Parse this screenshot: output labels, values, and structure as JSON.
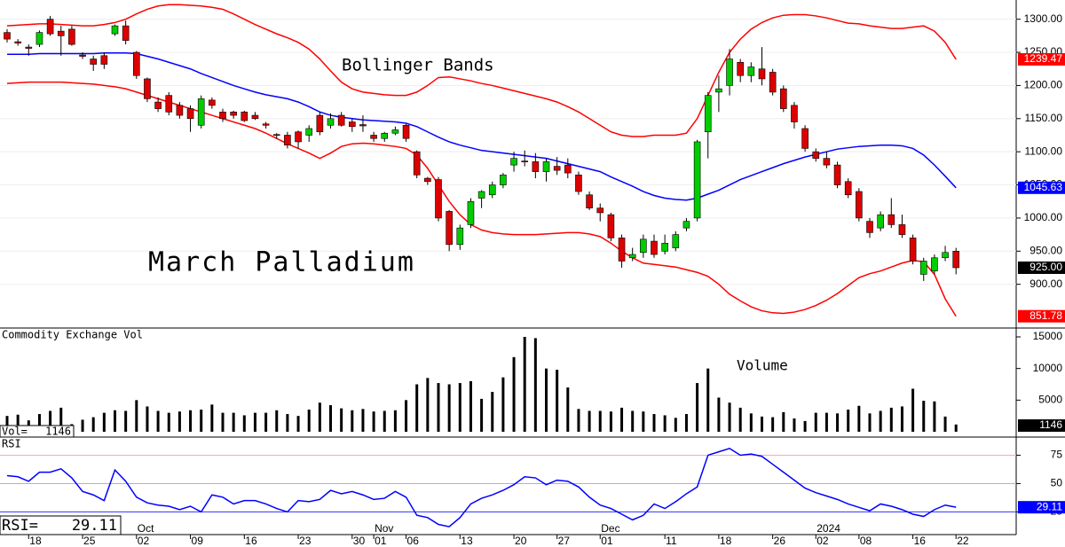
{
  "chart_data": [
    {
      "type": "candlestick",
      "title": "March Palladium",
      "annotation": "Bollinger Bands",
      "up_color": "#00cc00",
      "down_color": "#dd0000",
      "open": [
        1280,
        1266,
        1258,
        1262,
        1300,
        1282,
        1285,
        1246,
        1240,
        1245,
        1278,
        1290,
        1250,
        1210,
        1175,
        1185,
        1170,
        1165,
        1140,
        1178,
        1160,
        1160,
        1160,
        1155,
        1142,
        1126,
        1125,
        1130,
        1125,
        1155,
        1140,
        1155,
        1145,
        1141,
        1125,
        1120,
        1128,
        1140,
        1100,
        1060,
        1058,
        1010,
        960,
        990,
        1030,
        1035,
        1050,
        1080,
        1086,
        1085,
        1070,
        1078,
        1080,
        1065,
        1035,
        1015,
        1005,
        970,
        940,
        948,
        965,
        950,
        955,
        985,
        1000,
        1130,
        1190,
        1200,
        1235,
        1215,
        1225,
        1220,
        1195,
        1170,
        1135,
        1100,
        1090,
        1080,
        1055,
        1040,
        995,
        985,
        1005,
        990,
        970,
        915,
        920,
        940,
        950
      ],
      "high": [
        1285,
        1270,
        1262,
        1283,
        1305,
        1290,
        1290,
        1250,
        1245,
        1250,
        1292,
        1298,
        1252,
        1212,
        1182,
        1190,
        1175,
        1170,
        1185,
        1182,
        1165,
        1162,
        1162,
        1160,
        1145,
        1128,
        1130,
        1132,
        1140,
        1160,
        1158,
        1160,
        1150,
        1155,
        1130,
        1130,
        1138,
        1142,
        1102,
        1062,
        1062,
        1012,
        990,
        1030,
        1042,
        1055,
        1068,
        1100,
        1102,
        1098,
        1090,
        1092,
        1090,
        1070,
        1040,
        1022,
        1008,
        975,
        955,
        975,
        975,
        975,
        980,
        1000,
        1118,
        1190,
        1215,
        1255,
        1240,
        1235,
        1258,
        1225,
        1200,
        1175,
        1140,
        1105,
        1100,
        1085,
        1060,
        1045,
        1000,
        1010,
        1030,
        1005,
        975,
        940,
        945,
        958,
        955
      ],
      "low": [
        1265,
        1260,
        1245,
        1258,
        1275,
        1245,
        1260,
        1240,
        1222,
        1225,
        1275,
        1262,
        1210,
        1175,
        1160,
        1155,
        1150,
        1130,
        1135,
        1165,
        1145,
        1150,
        1145,
        1148,
        1135,
        1120,
        1105,
        1105,
        1115,
        1125,
        1135,
        1138,
        1130,
        1130,
        1115,
        1115,
        1125,
        1115,
        1060,
        1050,
        995,
        950,
        952,
        985,
        1015,
        1030,
        1045,
        1070,
        1078,
        1060,
        1055,
        1065,
        1060,
        1035,
        1012,
        995,
        965,
        925,
        935,
        940,
        940,
        945,
        950,
        980,
        995,
        1090,
        1160,
        1185,
        1205,
        1205,
        1200,
        1185,
        1160,
        1135,
        1100,
        1085,
        1075,
        1045,
        1030,
        995,
        970,
        980,
        985,
        970,
        930,
        905,
        915,
        935,
        915
      ],
      "close": [
        1270,
        1264,
        1256,
        1280,
        1278,
        1275,
        1262,
        1244,
        1232,
        1232,
        1290,
        1268,
        1215,
        1180,
        1165,
        1160,
        1155,
        1150,
        1180,
        1170,
        1150,
        1155,
        1147,
        1150,
        1140,
        1125,
        1110,
        1115,
        1135,
        1130,
        1150,
        1140,
        1138,
        1139,
        1120,
        1128,
        1133,
        1120,
        1065,
        1055,
        1000,
        960,
        985,
        1025,
        1040,
        1050,
        1065,
        1090,
        1085,
        1070,
        1085,
        1072,
        1068,
        1040,
        1015,
        1008,
        970,
        935,
        945,
        968,
        945,
        962,
        975,
        995,
        1115,
        1185,
        1195,
        1240,
        1215,
        1228,
        1210,
        1190,
        1165,
        1145,
        1105,
        1090,
        1080,
        1050,
        1035,
        1000,
        978,
        1005,
        990,
        975,
        935,
        935,
        940,
        948,
        925
      ],
      "last_close_label": "925.00",
      "bands": {
        "upper_color": "#ff0000",
        "middle_color": "#0000ff",
        "lower_color": "#ff0000",
        "upper": [
          1290,
          1291,
          1292,
          1293,
          1293,
          1292,
          1291,
          1290,
          1290,
          1292,
          1295,
          1300,
          1308,
          1315,
          1320,
          1322,
          1322,
          1321,
          1320,
          1318,
          1315,
          1308,
          1300,
          1292,
          1285,
          1278,
          1272,
          1265,
          1255,
          1240,
          1222,
          1205,
          1195,
          1190,
          1188,
          1186,
          1185,
          1185,
          1190,
          1200,
          1212,
          1213,
          1210,
          1207,
          1203,
          1200,
          1196,
          1192,
          1188,
          1184,
          1180,
          1175,
          1168,
          1160,
          1150,
          1140,
          1130,
          1125,
          1123,
          1123,
          1125,
          1125,
          1125,
          1128,
          1150,
          1185,
          1220,
          1250,
          1270,
          1285,
          1295,
          1302,
          1306,
          1307,
          1307,
          1305,
          1302,
          1298,
          1294,
          1293,
          1290,
          1288,
          1286,
          1286,
          1288,
          1290,
          1282,
          1265,
          1239.47
        ],
        "middle": [
          1247,
          1247,
          1247,
          1248,
          1248,
          1248,
          1248,
          1248,
          1248,
          1249,
          1249,
          1249,
          1248,
          1244,
          1240,
          1235,
          1230,
          1225,
          1218,
          1212,
          1206,
          1200,
          1195,
          1190,
          1186,
          1183,
          1180,
          1175,
          1168,
          1160,
          1155,
          1152,
          1150,
          1148,
          1147,
          1146,
          1145,
          1143,
          1138,
          1130,
          1122,
          1115,
          1110,
          1106,
          1102,
          1100,
          1098,
          1096,
          1094,
          1092,
          1090,
          1086,
          1082,
          1078,
          1074,
          1070,
          1062,
          1055,
          1048,
          1040,
          1034,
          1030,
          1028,
          1027,
          1030,
          1036,
          1042,
          1050,
          1058,
          1064,
          1070,
          1076,
          1082,
          1087,
          1092,
          1096,
          1100,
          1104,
          1106,
          1108,
          1109,
          1110,
          1110,
          1109,
          1105,
          1095,
          1080,
          1063,
          1045.63
        ],
        "lower": [
          1203,
          1204,
          1205,
          1205,
          1205,
          1205,
          1204,
          1203,
          1202,
          1200,
          1198,
          1195,
          1190,
          1185,
          1180,
          1175,
          1170,
          1165,
          1160,
          1155,
          1150,
          1145,
          1140,
          1135,
          1128,
          1120,
          1112,
          1105,
          1098,
          1090,
          1098,
          1108,
          1112,
          1113,
          1112,
          1110,
          1108,
          1105,
          1095,
          1075,
          1050,
          1025,
          1005,
          990,
          982,
          978,
          976,
          975,
          975,
          975,
          976,
          977,
          978,
          978,
          976,
          972,
          962,
          950,
          940,
          932,
          930,
          928,
          926,
          922,
          918,
          912,
          900,
          885,
          875,
          866,
          860,
          857,
          856,
          858,
          862,
          868,
          876,
          886,
          898,
          910,
          916,
          920,
          926,
          932,
          936,
          934,
          915,
          878,
          851.78
        ]
      },
      "ylim": [
        834,
        1329
      ],
      "yticks": [
        {
          "value": 900,
          "label": "900.00"
        },
        {
          "value": 950,
          "label": "950.00"
        },
        {
          "value": 1000,
          "label": "1000.00"
        },
        {
          "value": 1050,
          "label": "1050.00"
        },
        {
          "value": 1100,
          "label": "1100.00"
        },
        {
          "value": 1150,
          "label": "1150.00"
        },
        {
          "value": 1200,
          "label": "1200.00"
        },
        {
          "value": 1250,
          "label": "1250.00"
        },
        {
          "value": 1300,
          "label": "1300.00"
        }
      ]
    },
    {
      "type": "bar",
      "title": "Commodity Exchange Vol",
      "annotation": "Volume",
      "readout": "Vol=",
      "color": "#000000",
      "values": [
        2500,
        2700,
        1800,
        2800,
        3300,
        3800,
        1200,
        1900,
        2300,
        3000,
        3400,
        3300,
        5000,
        4000,
        3300,
        3000,
        3200,
        3400,
        3500,
        4300,
        3000,
        3000,
        2600,
        3000,
        3000,
        3400,
        2800,
        2500,
        3500,
        4600,
        4200,
        3700,
        3400,
        3600,
        3200,
        3300,
        3400,
        5000,
        7500,
        8500,
        7700,
        7500,
        7700,
        8000,
        5200,
        6300,
        8600,
        11800,
        15000,
        14800,
        10000,
        9800,
        7000,
        3600,
        3300,
        3300,
        3200,
        3800,
        3300,
        3200,
        2800,
        2600,
        2200,
        2800,
        7700,
        10000,
        5400,
        4600,
        3800,
        2900,
        2400,
        2300,
        3100,
        2100,
        1700,
        3000,
        3000,
        2900,
        3500,
        4100,
        2900,
        3300,
        3800,
        4000,
        6800,
        4900,
        4800,
        2400,
        1146
      ],
      "ylim": [
        -840,
        16400
      ],
      "yticks": [
        5000,
        10000,
        15000
      ]
    },
    {
      "type": "line",
      "title": "RSI",
      "readout": "RSI=",
      "color": "#0000ff",
      "values": [
        57,
        56,
        52,
        60,
        60,
        63,
        55,
        43,
        40,
        35,
        62,
        52,
        38,
        33,
        31,
        30,
        27,
        30,
        25,
        40,
        38,
        32,
        35,
        35,
        32,
        28,
        25,
        35,
        34,
        36,
        44,
        41,
        43,
        40,
        36,
        37,
        43,
        38,
        22,
        20,
        14,
        12,
        20,
        32,
        37,
        40,
        44,
        49,
        56,
        55,
        49,
        53,
        52,
        47,
        38,
        31,
        28,
        23,
        18,
        22,
        32,
        28,
        34,
        41,
        47,
        75,
        78,
        81,
        75,
        76,
        74,
        67,
        60,
        53,
        46,
        42,
        39,
        36,
        32,
        29,
        26,
        32,
        30,
        27,
        23,
        21,
        27,
        31,
        29.11
      ],
      "ylim": [
        5,
        91
      ],
      "yticks": [
        25,
        50,
        75
      ],
      "categories": [
        null,
        null,
        "18",
        null,
        null,
        null,
        null,
        "25",
        null,
        null,
        null,
        null,
        "02",
        null,
        null,
        null,
        null,
        "09",
        null,
        null,
        null,
        null,
        "16",
        null,
        null,
        null,
        null,
        "23",
        null,
        null,
        null,
        null,
        "30",
        null,
        "01",
        null,
        null,
        "06",
        null,
        null,
        null,
        null,
        "13",
        null,
        null,
        null,
        null,
        "20",
        null,
        null,
        null,
        "27",
        null,
        null,
        null,
        "01",
        null,
        null,
        null,
        null,
        null,
        "11",
        null,
        null,
        null,
        null,
        "18",
        null,
        null,
        null,
        null,
        "26",
        null,
        null,
        null,
        "02",
        null,
        null,
        null,
        "08",
        null,
        null,
        null,
        null,
        "16",
        null,
        null,
        null,
        "22"
      ],
      "months": [
        null,
        null,
        null,
        null,
        null,
        null,
        null,
        null,
        null,
        null,
        null,
        null,
        "Oct",
        null,
        null,
        null,
        null,
        null,
        null,
        null,
        null,
        null,
        null,
        null,
        null,
        null,
        null,
        null,
        null,
        null,
        null,
        null,
        null,
        null,
        "Nov",
        null,
        null,
        null,
        null,
        null,
        null,
        null,
        null,
        null,
        null,
        null,
        null,
        null,
        null,
        null,
        null,
        null,
        null,
        null,
        null,
        "Dec",
        null,
        null,
        null,
        null,
        null,
        null,
        null,
        null,
        null,
        null,
        null,
        null,
        null,
        null,
        null,
        null,
        null,
        null,
        null,
        "2024",
        null,
        null,
        null,
        null,
        null,
        null,
        null,
        null,
        null,
        null,
        null,
        null,
        null
      ]
    }
  ]
}
